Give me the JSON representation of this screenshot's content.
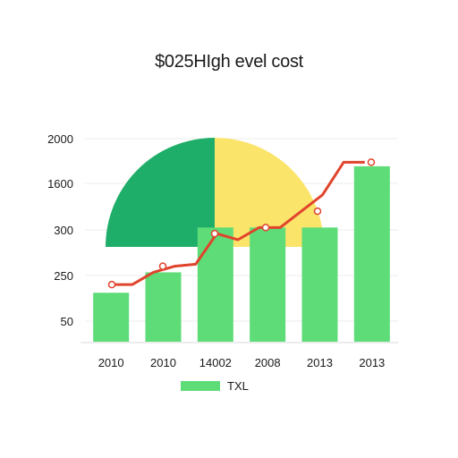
{
  "chart_data": {
    "type": "bar",
    "title": "$025HIgh evel cost",
    "xlabel": "",
    "ylabel": "",
    "categories": [
      "2010",
      "2010",
      "14002",
      "2008",
      "2013",
      "2013"
    ],
    "y_tick_labels": [
      "2000",
      "1600",
      "300",
      "250",
      "50"
    ],
    "series": [
      {
        "name": "TXL",
        "kind": "bar",
        "color": "#5ddc78",
        "values": [
          0.24,
          0.34,
          0.56,
          0.56,
          0.56,
          0.86
        ]
      },
      {
        "kind": "line",
        "color": "#e0442c",
        "marker_values": [
          0.28,
          0.37,
          0.53,
          0.56,
          0.64,
          0.88
        ],
        "path_values": [
          0.28,
          0.28,
          0.34,
          0.37,
          0.38,
          0.53,
          0.5,
          0.56,
          0.56,
          0.64,
          0.72,
          0.88,
          0.88
        ]
      }
    ],
    "background_pie": {
      "slices": [
        {
          "fraction": 0.25,
          "color": "#1fae6a"
        },
        {
          "fraction": 0.25,
          "color": "#fbe46a"
        }
      ]
    },
    "grid": true,
    "legend_position": "bottom"
  }
}
